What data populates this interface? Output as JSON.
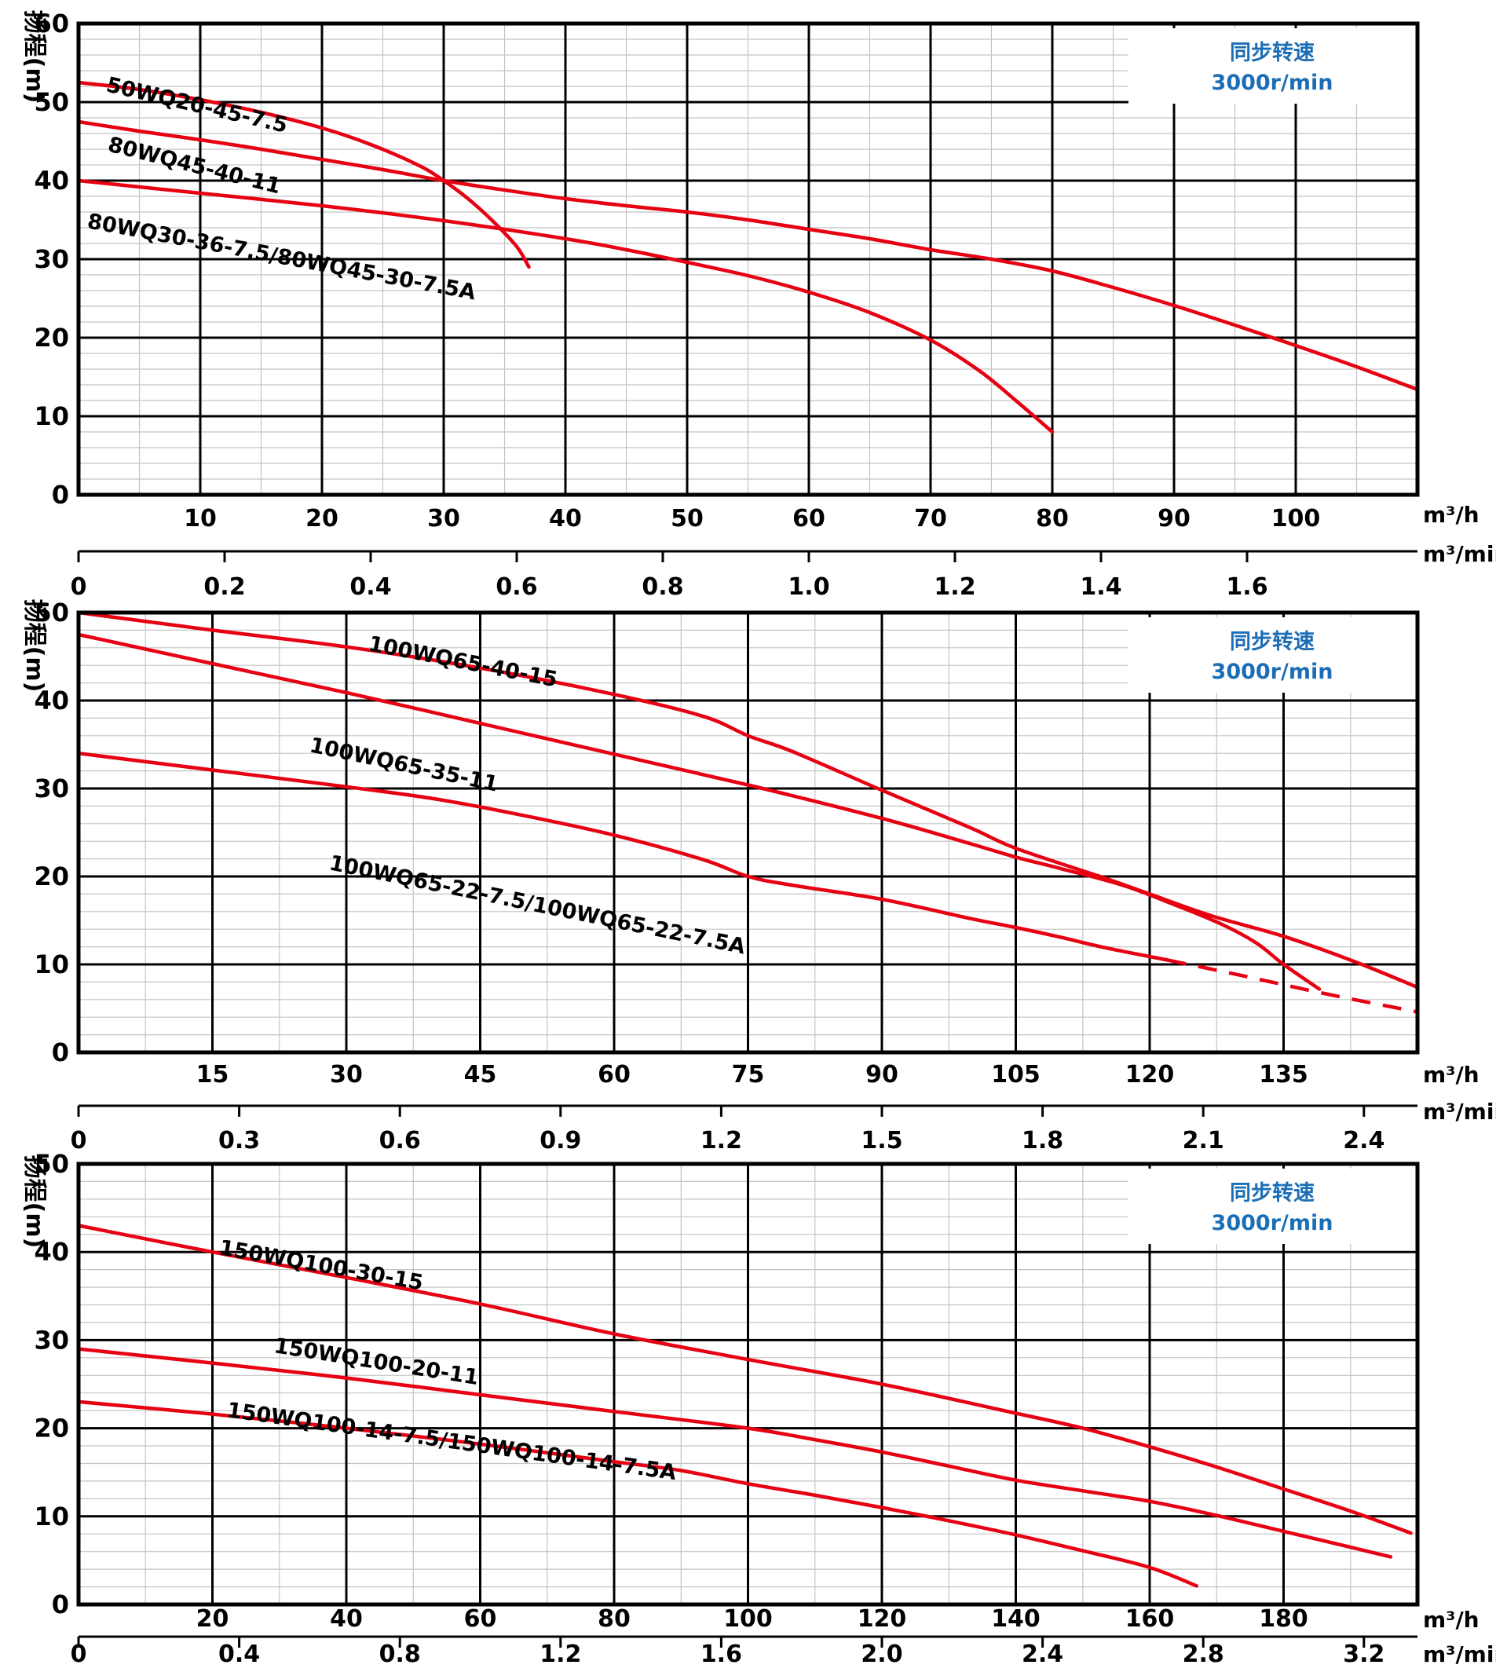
{
  "colors": {
    "curve": "#e60012",
    "grid_minor": "#c4c4c4",
    "grid_major": "#000000",
    "border": "#000000",
    "legend_text": "#1b6eb5",
    "axis_text": "#000000",
    "background": "#ffffff"
  },
  "legend": {
    "line1": "同步转速",
    "line2": "3000r/min"
  },
  "units": {
    "flow_hour": "m³/h",
    "flow_min": "m³/min"
  },
  "y_axis_title": "扬程(m)",
  "chart_data": [
    {
      "type": "line",
      "title": "同步转速 3000r/min (top chart, 50/80WQ series)",
      "ylabel": "扬程(m)",
      "xlabel": "m³/h / m³/min",
      "x_axis": {
        "min": 0,
        "max": 110,
        "major": 10,
        "minor": 5,
        "tick_labels": [
          "10",
          "20",
          "30",
          "40",
          "50",
          "60",
          "70",
          "80",
          "90",
          "100"
        ],
        "tick_values": [
          10,
          20,
          30,
          40,
          50,
          60,
          70,
          80,
          90,
          100
        ]
      },
      "x2_axis": {
        "factor": 60,
        "tick_labels": [
          "0",
          "0.2",
          "0.4",
          "0.6",
          "0.8",
          "1.0",
          "1.2",
          "1.4",
          "1.6"
        ],
        "tick_values": [
          0,
          0.2,
          0.4,
          0.6,
          0.8,
          1.0,
          1.2,
          1.4,
          1.6
        ]
      },
      "y_axis": {
        "min": 0,
        "max": 60,
        "major": 10,
        "minor": 2,
        "tick_labels": [
          "0",
          "10",
          "20",
          "30",
          "40",
          "50",
          "60"
        ],
        "tick_values": [
          0,
          10,
          20,
          30,
          40,
          50,
          60
        ]
      },
      "series": [
        {
          "name": "50WQ20-45-7.5",
          "label": {
            "x": 134,
            "y": 94,
            "angle": 13
          },
          "points": [
            [
              0,
              52.5
            ],
            [
              5,
              51.6
            ],
            [
              10,
              50.3
            ],
            [
              15,
              48.7
            ],
            [
              20,
              46.7
            ],
            [
              24,
              44.6
            ],
            [
              28,
              41.9
            ],
            [
              30,
              40
            ],
            [
              32,
              37.7
            ],
            [
              34,
              34.9
            ],
            [
              36,
              31.6
            ],
            [
              37,
              29
            ]
          ]
        },
        {
          "name": "80WQ45-40-11",
          "label": {
            "x": 136,
            "y": 170,
            "angle": 14
          },
          "points": [
            [
              0,
              47.5
            ],
            [
              5,
              46.3
            ],
            [
              10,
              45.2
            ],
            [
              15,
              44
            ],
            [
              20,
              42.7
            ],
            [
              25,
              41.4
            ],
            [
              30,
              40
            ],
            [
              35,
              38.8
            ],
            [
              40,
              37.7
            ],
            [
              45,
              36.8
            ],
            [
              50,
              36
            ],
            [
              55,
              35
            ],
            [
              60,
              33.8
            ],
            [
              65,
              32.6
            ],
            [
              70,
              31.2
            ],
            [
              75,
              30
            ],
            [
              80,
              28.5
            ],
            [
              85,
              26.4
            ],
            [
              90,
              24.1
            ],
            [
              95,
              21.6
            ],
            [
              100,
              19
            ],
            [
              105,
              16.3
            ],
            [
              110,
              13.4
            ]
          ]
        },
        {
          "name": "80WQ30-36-7.5/80WQ45-30-7.5A",
          "label": {
            "x": 110,
            "y": 268,
            "angle": 10.5
          },
          "points": [
            [
              0,
              40
            ],
            [
              10,
              38.4
            ],
            [
              20,
              36.8
            ],
            [
              30,
              34.9
            ],
            [
              40,
              32.6
            ],
            [
              45,
              31.2
            ],
            [
              50,
              29.6
            ],
            [
              55,
              27.9
            ],
            [
              60,
              25.8
            ],
            [
              65,
              23.2
            ],
            [
              70,
              19.7
            ],
            [
              74,
              15.8
            ],
            [
              77,
              12
            ],
            [
              80,
              8
            ]
          ]
        }
      ]
    },
    {
      "type": "line",
      "title": "同步转速 3000r/min (middle chart, 100WQ series)",
      "ylabel": "扬程(m)",
      "xlabel": "m³/h / m³/min",
      "x_axis": {
        "min": 0,
        "max": 150,
        "major": 15,
        "minor": 7.5,
        "tick_labels": [
          "15",
          "30",
          "45",
          "60",
          "75",
          "90",
          "105",
          "120",
          "135"
        ],
        "tick_values": [
          15,
          30,
          45,
          60,
          75,
          90,
          105,
          120,
          135
        ]
      },
      "x2_axis": {
        "factor": 60,
        "tick_labels": [
          "0",
          "0.3",
          "0.6",
          "0.9",
          "1.2",
          "1.5",
          "1.8",
          "2.1",
          "2.4"
        ],
        "tick_values": [
          0,
          0.3,
          0.6,
          0.9,
          1.2,
          1.5,
          1.8,
          2.1,
          2.4
        ]
      },
      "y_axis": {
        "min": 0,
        "max": 50,
        "major": 10,
        "minor": 2,
        "tick_labels": [
          "0",
          "10",
          "20",
          "30",
          "40",
          "50"
        ],
        "tick_values": [
          0,
          10,
          20,
          30,
          40,
          50
        ]
      },
      "series": [
        {
          "name": "100WQ65-40-15",
          "label": {
            "x": 468,
            "y": 806,
            "angle": 11
          },
          "points": [
            [
              0,
              50
            ],
            [
              15,
              48
            ],
            [
              30,
              46.1
            ],
            [
              45,
              43.7
            ],
            [
              60,
              40.7
            ],
            [
              70,
              38.2
            ],
            [
              75,
              36
            ],
            [
              80,
              34.2
            ],
            [
              90,
              29.8
            ],
            [
              100,
              25.5
            ],
            [
              105,
              23.2
            ],
            [
              115,
              19.8
            ],
            [
              120,
              18
            ],
            [
              127,
              15.5
            ],
            [
              135,
              13.2
            ],
            [
              143,
              10.3
            ],
            [
              150,
              7.4
            ]
          ]
        },
        {
          "name": "100WQ65-35-11",
          "label": {
            "x": 393,
            "y": 935,
            "angle": 12
          },
          "points": [
            [
              0,
              47.5
            ],
            [
              15,
              44.2
            ],
            [
              30,
              40.9
            ],
            [
              45,
              37.4
            ],
            [
              60,
              33.9
            ],
            [
              75,
              30.4
            ],
            [
              90,
              26.6
            ],
            [
              100,
              23.7
            ],
            [
              105,
              22.2
            ],
            [
              110,
              20.9
            ],
            [
              117,
              19
            ],
            [
              123,
              16.7
            ],
            [
              128,
              14.6
            ],
            [
              132,
              12.4
            ],
            [
              135,
              10
            ],
            [
              139,
              7.2
            ]
          ]
        },
        {
          "name": "100WQ65-22-7.5/100WQ65-22-7.5A",
          "label": {
            "x": 418,
            "y": 1085,
            "angle": 11.5
          },
          "points": [
            [
              0,
              34
            ],
            [
              15,
              32.1
            ],
            [
              30,
              30.2
            ],
            [
              40,
              28.8
            ],
            [
              50,
              26.9
            ],
            [
              60,
              24.7
            ],
            [
              70,
              21.9
            ],
            [
              75,
              20
            ],
            [
              80,
              19
            ],
            [
              90,
              17.4
            ],
            [
              100,
              15.2
            ],
            [
              105,
              14.2
            ],
            [
              110,
              13.1
            ],
            [
              115,
              11.9
            ],
            [
              122,
              10.5
            ]
          ],
          "dash_points": [
            [
              122,
              10.5
            ],
            [
              130,
              8.8
            ],
            [
              140,
              6.6
            ],
            [
              150,
              4.6
            ]
          ]
        }
      ]
    },
    {
      "type": "line",
      "title": "同步转速 3000r/min (bottom chart, 150WQ series)",
      "ylabel": "扬程(m)",
      "xlabel": "m³/h / m³/min",
      "x_axis": {
        "min": 0,
        "max": 200,
        "major": 20,
        "minor": 10,
        "tick_labels": [
          "20",
          "40",
          "60",
          "80",
          "100",
          "120",
          "140",
          "160",
          "180"
        ],
        "tick_values": [
          20,
          40,
          60,
          80,
          100,
          120,
          140,
          160,
          180
        ]
      },
      "x2_axis": {
        "factor": 60,
        "tick_labels": [
          "0",
          "0.4",
          "0.8",
          "1.2",
          "1.6",
          "2.0",
          "2.4",
          "2.8",
          "3.2"
        ],
        "tick_values": [
          0,
          0.4,
          0.8,
          1.2,
          1.6,
          2.0,
          2.4,
          2.8,
          3.2
        ]
      },
      "y_axis": {
        "min": 0,
        "max": 50,
        "major": 10,
        "minor": 2,
        "tick_labels": [
          "0",
          "10",
          "20",
          "30",
          "40",
          "50"
        ],
        "tick_values": [
          0,
          10,
          20,
          30,
          40,
          50
        ]
      },
      "series": [
        {
          "name": "150WQ100-30-15",
          "label": {
            "x": 278,
            "y": 1575,
            "angle": 10
          },
          "points": [
            [
              0,
              43
            ],
            [
              20,
              40
            ],
            [
              40,
              37.1
            ],
            [
              60,
              34.1
            ],
            [
              80,
              30.7
            ],
            [
              100,
              27.8
            ],
            [
              120,
              25
            ],
            [
              140,
              21.7
            ],
            [
              150,
              20
            ],
            [
              160,
              17.9
            ],
            [
              170,
              15.6
            ],
            [
              180,
              13.1
            ],
            [
              190,
              10.6
            ],
            [
              199,
              8.1
            ]
          ]
        },
        {
          "name": "150WQ100-20-11",
          "label": {
            "x": 348,
            "y": 1700,
            "angle": 9
          },
          "points": [
            [
              0,
              29
            ],
            [
              20,
              27.4
            ],
            [
              40,
              25.7
            ],
            [
              60,
              23.8
            ],
            [
              80,
              21.9
            ],
            [
              100,
              20
            ],
            [
              110,
              18.7
            ],
            [
              120,
              17.3
            ],
            [
              130,
              15.7
            ],
            [
              140,
              14.1
            ],
            [
              150,
              12.9
            ],
            [
              160,
              11.7
            ],
            [
              170,
              10.1
            ],
            [
              180,
              8.3
            ],
            [
              190,
              6.5
            ],
            [
              196,
              5.4
            ]
          ]
        },
        {
          "name": "150WQ100-14-7.5/150WQ100-14-7.5A",
          "label": {
            "x": 288,
            "y": 1782,
            "angle": 8
          },
          "points": [
            [
              0,
              23
            ],
            [
              20,
              21.6
            ],
            [
              40,
              20
            ],
            [
              60,
              18.2
            ],
            [
              80,
              16.2
            ],
            [
              90,
              15.2
            ],
            [
              100,
              13.7
            ],
            [
              110,
              12.4
            ],
            [
              120,
              11
            ],
            [
              130,
              9.5
            ],
            [
              140,
              7.9
            ],
            [
              150,
              6.1
            ],
            [
              160,
              4.2
            ],
            [
              167,
              2.1
            ]
          ]
        }
      ]
    }
  ]
}
